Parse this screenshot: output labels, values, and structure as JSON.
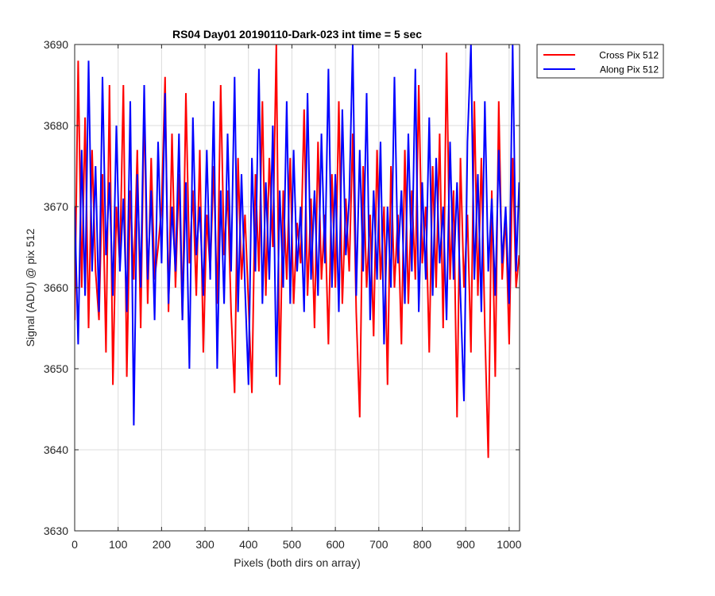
{
  "chart_data": {
    "type": "line",
    "title": "RS04 Day01 20190110-Dark-023 int time = 5 sec",
    "xlabel": "Pixels (both dirs on array)",
    "ylabel": "Signal (ADU) @ pix 512",
    "xlim": [
      0,
      1024
    ],
    "ylim": [
      3630,
      3690
    ],
    "xticks": [
      0,
      100,
      200,
      300,
      400,
      500,
      600,
      700,
      800,
      900,
      1000
    ],
    "yticks": [
      3630,
      3640,
      3650,
      3660,
      3670,
      3680,
      3690
    ],
    "grid": true,
    "legend_position": "outside-top-right",
    "series": [
      {
        "name": "Cross Pix 512",
        "color": "#ff0000",
        "x": [
          0,
          8,
          16,
          24,
          32,
          40,
          48,
          56,
          64,
          72,
          80,
          88,
          96,
          104,
          112,
          120,
          128,
          136,
          144,
          152,
          160,
          168,
          176,
          184,
          192,
          200,
          208,
          216,
          224,
          232,
          240,
          248,
          256,
          264,
          272,
          280,
          288,
          296,
          304,
          312,
          320,
          328,
          336,
          344,
          352,
          360,
          368,
          376,
          384,
          392,
          400,
          408,
          416,
          424,
          432,
          440,
          448,
          456,
          464,
          472,
          480,
          488,
          496,
          504,
          512,
          520,
          528,
          536,
          544,
          552,
          560,
          568,
          576,
          584,
          592,
          600,
          608,
          616,
          624,
          632,
          640,
          648,
          656,
          664,
          672,
          680,
          688,
          696,
          704,
          712,
          720,
          728,
          736,
          744,
          752,
          760,
          768,
          776,
          784,
          792,
          800,
          808,
          816,
          824,
          832,
          840,
          848,
          856,
          864,
          872,
          880,
          888,
          896,
          904,
          912,
          920,
          928,
          936,
          944,
          952,
          960,
          968,
          976,
          984,
          992,
          1000,
          1008,
          1016,
          1023
        ],
        "values": [
          3656,
          3688,
          3660,
          3681,
          3655,
          3677,
          3662,
          3656,
          3674,
          3652,
          3685,
          3648,
          3670,
          3663,
          3685,
          3649,
          3672,
          3661,
          3677,
          3655,
          3683,
          3658,
          3676,
          3661,
          3665,
          3670,
          3686,
          3657,
          3679,
          3660,
          3674,
          3656,
          3684,
          3663,
          3672,
          3659,
          3677,
          3652,
          3669,
          3662,
          3675,
          3658,
          3685,
          3664,
          3672,
          3657,
          3647,
          3676,
          3661,
          3669,
          3658,
          3647,
          3674,
          3662,
          3683,
          3659,
          3676,
          3665,
          3690,
          3648,
          3672,
          3661,
          3676,
          3658,
          3668,
          3663,
          3682,
          3659,
          3671,
          3655,
          3678,
          3661,
          3669,
          3653,
          3674,
          3660,
          3683,
          3658,
          3671,
          3662,
          3679,
          3657,
          3644,
          3675,
          3660,
          3669,
          3654,
          3677,
          3661,
          3670,
          3648,
          3675,
          3660,
          3669,
          3653,
          3677,
          3658,
          3672,
          3661,
          3685,
          3663,
          3670,
          3652,
          3675,
          3660,
          3679,
          3655,
          3689,
          3661,
          3672,
          3644,
          3676,
          3660,
          3669,
          3652,
          3683,
          3659,
          3676,
          3655,
          3639,
          3672,
          3649,
          3683,
          3661,
          3669,
          3653,
          3676,
          3660,
          3664
        ]
      },
      {
        "name": "Along Pix 512",
        "color": "#0000ff",
        "x": [
          0,
          8,
          16,
          24,
          32,
          40,
          48,
          56,
          64,
          72,
          80,
          88,
          96,
          104,
          112,
          120,
          128,
          136,
          144,
          152,
          160,
          168,
          176,
          184,
          192,
          200,
          208,
          216,
          224,
          232,
          240,
          248,
          256,
          264,
          272,
          280,
          288,
          296,
          304,
          312,
          320,
          328,
          336,
          344,
          352,
          360,
          368,
          376,
          384,
          392,
          400,
          408,
          416,
          424,
          432,
          440,
          448,
          456,
          464,
          472,
          480,
          488,
          496,
          504,
          512,
          520,
          528,
          536,
          544,
          552,
          560,
          568,
          576,
          584,
          592,
          600,
          608,
          616,
          624,
          632,
          640,
          648,
          656,
          664,
          672,
          680,
          688,
          696,
          704,
          712,
          720,
          728,
          736,
          744,
          752,
          760,
          768,
          776,
          784,
          792,
          800,
          808,
          816,
          824,
          832,
          840,
          848,
          856,
          864,
          872,
          880,
          888,
          896,
          904,
          912,
          920,
          928,
          936,
          944,
          952,
          960,
          968,
          976,
          984,
          992,
          1000,
          1008,
          1016,
          1023
        ],
        "values": [
          3670,
          3653,
          3677,
          3659,
          3688,
          3662,
          3675,
          3657,
          3686,
          3664,
          3673,
          3659,
          3680,
          3662,
          3671,
          3657,
          3683,
          3643,
          3674,
          3660,
          3685,
          3661,
          3672,
          3656,
          3678,
          3663,
          3684,
          3658,
          3670,
          3662,
          3679,
          3656,
          3673,
          3650,
          3681,
          3664,
          3670,
          3659,
          3677,
          3661,
          3683,
          3650,
          3672,
          3658,
          3679,
          3662,
          3686,
          3657,
          3674,
          3660,
          3648,
          3676,
          3662,
          3687,
          3658,
          3673,
          3661,
          3680,
          3649,
          3672,
          3660,
          3683,
          3658,
          3677,
          3662,
          3670,
          3657,
          3684,
          3661,
          3672,
          3659,
          3679,
          3663,
          3687,
          3660,
          3674,
          3657,
          3682,
          3664,
          3671,
          3690,
          3659,
          3677,
          3662,
          3684,
          3656,
          3672,
          3661,
          3678,
          3653,
          3670,
          3660,
          3686,
          3663,
          3672,
          3658,
          3679,
          3662,
          3687,
          3657,
          3673,
          3661,
          3681,
          3659,
          3676,
          3663,
          3670,
          3656,
          3678,
          3661,
          3673,
          3659,
          3646,
          3678,
          3690,
          3661,
          3674,
          3657,
          3683,
          3662,
          3671,
          3659,
          3677,
          3663,
          3670,
          3658,
          3690,
          3662,
          3673
        ]
      }
    ]
  }
}
